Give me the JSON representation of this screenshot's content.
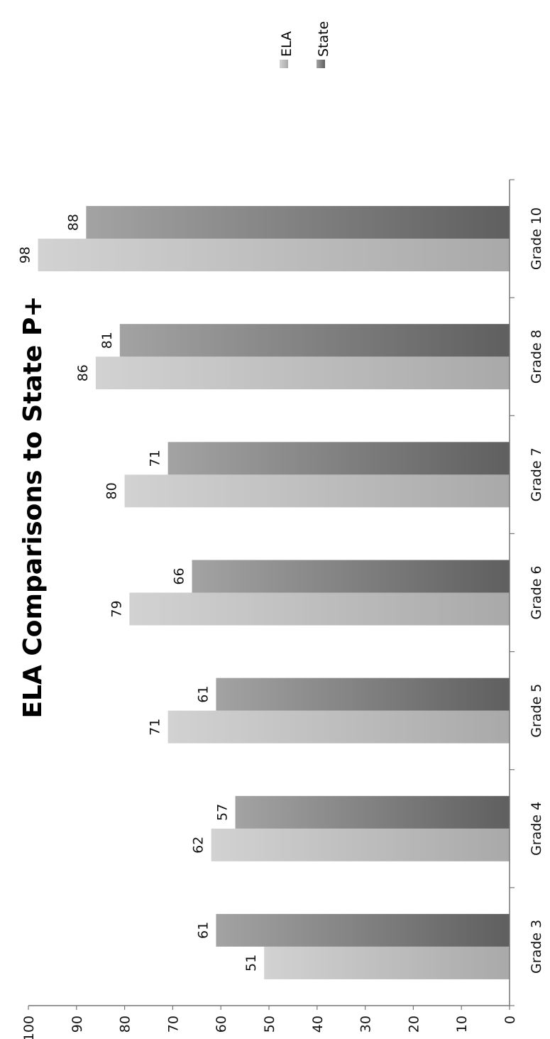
{
  "chart_data": {
    "type": "bar",
    "title": "ELA Comparisons to State P+",
    "categories": [
      "Grade 3",
      "Grade 4",
      "Grade 5",
      "Grade 6",
      "Grade 7",
      "Grade 8",
      "Grade 10"
    ],
    "series": [
      {
        "name": "ELA",
        "values": [
          51,
          62,
          71,
          79,
          80,
          86,
          98
        ]
      },
      {
        "name": "State",
        "values": [
          61,
          57,
          61,
          66,
          71,
          81,
          88
        ]
      }
    ],
    "ylim": [
      0,
      100
    ],
    "yticks": [
      "0",
      "10",
      "20",
      "30",
      "40",
      "50",
      "60",
      "70",
      "80",
      "90",
      "100"
    ],
    "orientation": "rotated 90° counter-clockwise",
    "legend_position": "top-right",
    "grid": false
  },
  "colors": {
    "ela_light": "#d2d2d2",
    "ela_dark": "#a9a9a9",
    "state_light": "#a3a3a3",
    "state_dark": "#5f5f5f",
    "axis": "#777777",
    "text": "#111111"
  }
}
